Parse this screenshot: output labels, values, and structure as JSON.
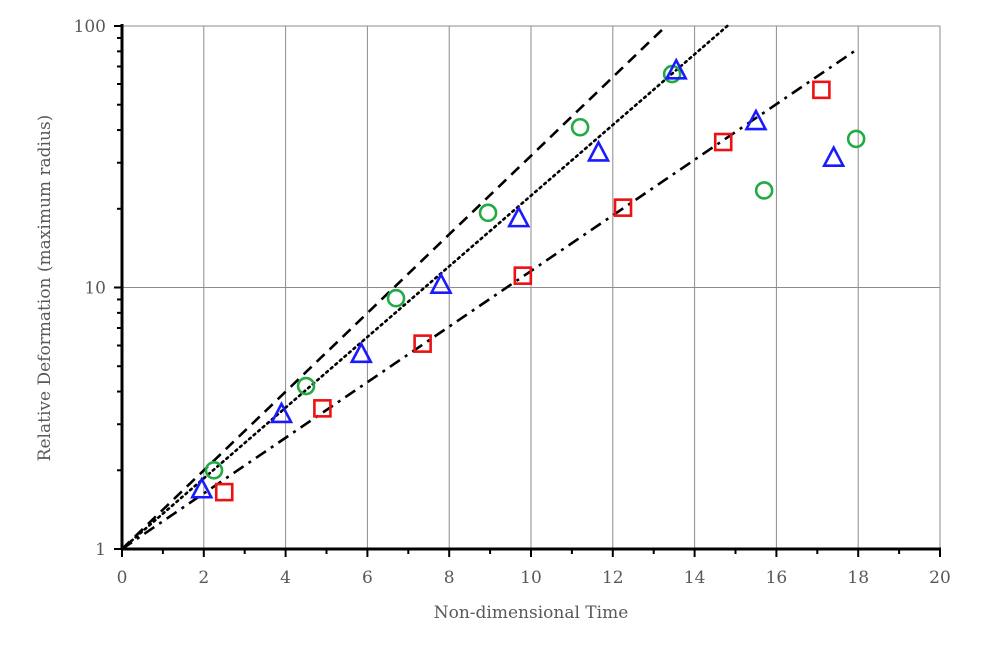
{
  "chart_data": {
    "type": "scatter",
    "title": "",
    "xlabel": "Non-dimensional Time",
    "ylabel": "Relative Deformation (maximum radius)",
    "xlim": [
      0,
      20
    ],
    "ylim": [
      1,
      100
    ],
    "yscale": "log",
    "grid": true,
    "legend": "none",
    "x_ticks": [
      "0",
      "2",
      "4",
      "6",
      "8",
      "10",
      "12",
      "14",
      "16",
      "18",
      "20"
    ],
    "y_ticks": [
      "1",
      "10",
      "100"
    ],
    "series": [
      {
        "marker": "circle",
        "color": "#22aa44",
        "x": [
          2.25,
          4.5,
          6.7,
          8.95,
          11.2,
          13.45,
          15.7,
          17.95
        ],
        "y": [
          2.0,
          4.2,
          9.1,
          19.3,
          41.0,
          65.5,
          23.5,
          37.0
        ]
      },
      {
        "marker": "triangle",
        "color": "#1a1aff",
        "x": [
          1.95,
          3.9,
          5.85,
          7.8,
          9.7,
          11.65,
          13.55,
          15.5,
          17.4
        ],
        "y": [
          1.7,
          3.3,
          5.6,
          10.3,
          18.5,
          33.0,
          68.0,
          43.5,
          31.5
        ]
      },
      {
        "marker": "square",
        "color": "#ee1111",
        "x": [
          2.5,
          4.9,
          7.35,
          9.8,
          12.25,
          14.7,
          17.1
        ],
        "y": [
          1.65,
          3.45,
          6.1,
          11.1,
          20.2,
          36.0,
          57.0
        ]
      }
    ],
    "fit_lines": [
      {
        "style": "dashed",
        "color": "#000000",
        "x": [
          0,
          13.3
        ],
        "y": [
          1,
          100
        ]
      },
      {
        "style": "dotted",
        "color": "#000000",
        "x": [
          0,
          14.8
        ],
        "y": [
          1,
          100
        ]
      },
      {
        "style": "dash-dot",
        "color": "#000000",
        "x": [
          0,
          18.0
        ],
        "y": [
          1,
          82
        ]
      }
    ]
  }
}
